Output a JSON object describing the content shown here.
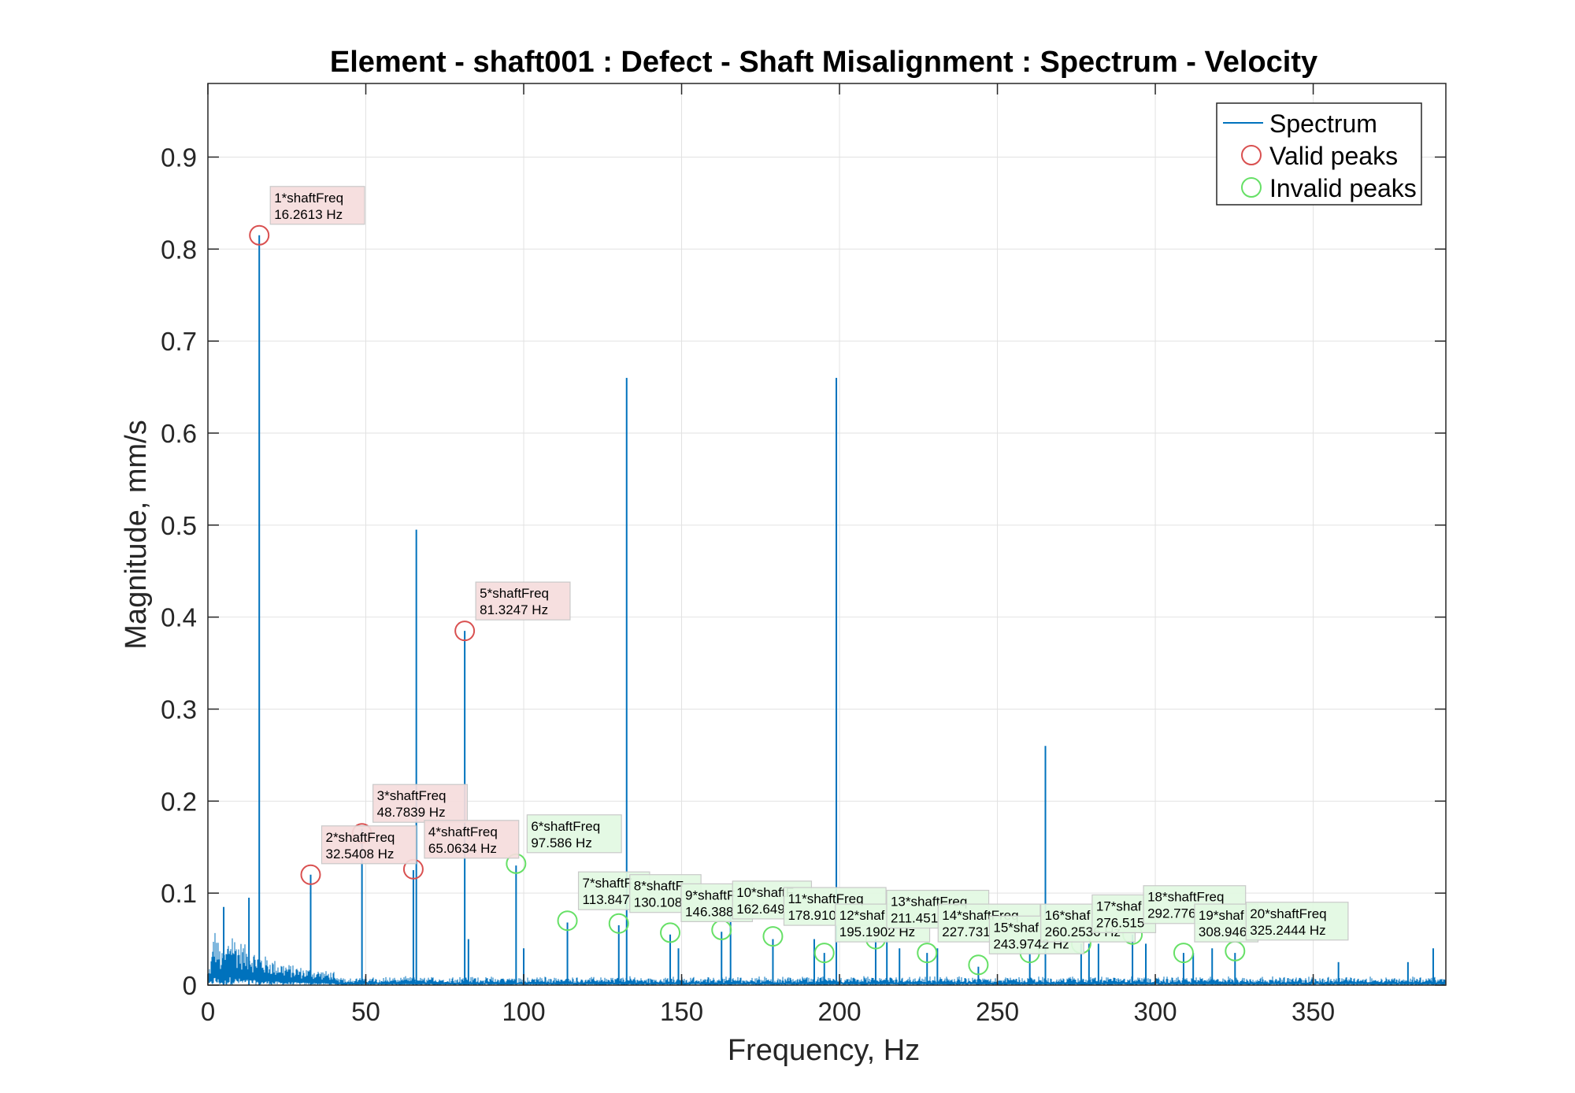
{
  "chart_data": {
    "type": "line",
    "title": "Element - shaft001 : Defect - Shaft Misalignment : Spectrum - Velocity",
    "xlabel": "Frequency, Hz",
    "ylabel": "Magnitude, mm/s",
    "xlim": [
      0,
      392
    ],
    "ylim": [
      0,
      0.98
    ],
    "xticks": [
      "0",
      "50",
      "100",
      "150",
      "200",
      "250",
      "300",
      "350"
    ],
    "yticks": [
      "0",
      "0.1",
      "0.2",
      "0.3",
      "0.4",
      "0.5",
      "0.6",
      "0.7",
      "0.8",
      "0.9"
    ],
    "grid": true,
    "legend": {
      "location": "top-right",
      "entries": [
        "Spectrum",
        "Valid peaks",
        "Invalid peaks"
      ]
    },
    "colors": {
      "spectrum": "#0072BD",
      "valid": "#D95050",
      "invalid": "#66E066",
      "valid_box": "#F5DCDC",
      "invalid_box": "#E2F8E2"
    },
    "series": [
      {
        "name": "Spectrum",
        "spikes": [
          {
            "x": 5.0,
            "y": 0.085
          },
          {
            "x": 13.0,
            "y": 0.095
          },
          {
            "x": 16.2613,
            "y": 0.815
          },
          {
            "x": 32.5408,
            "y": 0.12
          },
          {
            "x": 48.7839,
            "y": 0.17
          },
          {
            "x": 65.0634,
            "y": 0.125
          },
          {
            "x": 66.0,
            "y": 0.495
          },
          {
            "x": 81.3247,
            "y": 0.385
          },
          {
            "x": 82.5,
            "y": 0.05
          },
          {
            "x": 97.586,
            "y": 0.13
          },
          {
            "x": 100.0,
            "y": 0.04
          },
          {
            "x": 113.847,
            "y": 0.068
          },
          {
            "x": 130.108,
            "y": 0.065
          },
          {
            "x": 132.6,
            "y": 0.66
          },
          {
            "x": 146.388,
            "y": 0.055
          },
          {
            "x": 149.0,
            "y": 0.04
          },
          {
            "x": 162.649,
            "y": 0.058
          },
          {
            "x": 165.5,
            "y": 0.085
          },
          {
            "x": 178.91,
            "y": 0.05
          },
          {
            "x": 192.0,
            "y": 0.05
          },
          {
            "x": 195.1902,
            "y": 0.035
          },
          {
            "x": 199.0,
            "y": 0.66
          },
          {
            "x": 211.451,
            "y": 0.05
          },
          {
            "x": 215.0,
            "y": 0.05
          },
          {
            "x": 219.0,
            "y": 0.04
          },
          {
            "x": 227.731,
            "y": 0.035
          },
          {
            "x": 231.0,
            "y": 0.04
          },
          {
            "x": 243.9742,
            "y": 0.02
          },
          {
            "x": 260.2536,
            "y": 0.035
          },
          {
            "x": 265.2,
            "y": 0.26
          },
          {
            "x": 276.515,
            "y": 0.045
          },
          {
            "x": 279.0,
            "y": 0.045
          },
          {
            "x": 282.0,
            "y": 0.045
          },
          {
            "x": 292.776,
            "y": 0.055
          },
          {
            "x": 297.0,
            "y": 0.045
          },
          {
            "x": 308.946,
            "y": 0.035
          },
          {
            "x": 312.0,
            "y": 0.035
          },
          {
            "x": 318.0,
            "y": 0.04
          },
          {
            "x": 325.2444,
            "y": 0.035
          },
          {
            "x": 358.0,
            "y": 0.025
          },
          {
            "x": 380.0,
            "y": 0.025
          },
          {
            "x": 388.0,
            "y": 0.04
          }
        ]
      }
    ],
    "valid_peaks": [
      {
        "label": "1*shaftFreq",
        "freq": "16.2613 Hz",
        "x": 16.2613,
        "y": 0.815
      },
      {
        "label": "2*shaftFreq",
        "freq": "32.5408 Hz",
        "x": 32.5408,
        "y": 0.12
      },
      {
        "label": "3*shaftFreq",
        "freq": "48.7839 Hz",
        "x": 48.7839,
        "y": 0.165
      },
      {
        "label": "4*shaftFreq",
        "freq": "65.0634 Hz",
        "x": 65.0634,
        "y": 0.126
      },
      {
        "label": "5*shaftFreq",
        "freq": "81.3247 Hz",
        "x": 81.3247,
        "y": 0.385
      }
    ],
    "invalid_peaks": [
      {
        "label": "6*shaftFreq",
        "freq": "97.586 Hz",
        "x": 97.586,
        "y": 0.132
      },
      {
        "label": "7*shaftF",
        "freq": "113.847",
        "x": 113.847,
        "y": 0.07
      },
      {
        "label": "8*shaftF",
        "freq": "130.108",
        "x": 130.108,
        "y": 0.067
      },
      {
        "label": "9*shaftF",
        "freq": "146.388",
        "x": 146.388,
        "y": 0.057
      },
      {
        "label": "10*shaftF",
        "freq": "162.649",
        "x": 162.649,
        "y": 0.06
      },
      {
        "label": "11*shaftFreq",
        "freq": "178.910",
        "x": 178.91,
        "y": 0.053
      },
      {
        "label": "12*shaf",
        "freq": "195.1902 Hz",
        "x": 195.1902,
        "y": 0.035
      },
      {
        "label": "13*shaftFreq",
        "freq": "211.451",
        "x": 211.451,
        "y": 0.05
      },
      {
        "label": "14*shaftFreq",
        "freq": "227.731",
        "x": 227.731,
        "y": 0.035
      },
      {
        "label": "15*shaf",
        "freq": "243.9742 Hz",
        "x": 243.9742,
        "y": 0.022
      },
      {
        "label": "16*shaf",
        "freq": "260.2536 Hz",
        "x": 260.2536,
        "y": 0.035
      },
      {
        "label": "17*shaf",
        "freq": "276.515",
        "x": 276.515,
        "y": 0.045
      },
      {
        "label": "18*shaftFreq",
        "freq": "292.776",
        "x": 292.776,
        "y": 0.055
      },
      {
        "label": "19*shaf",
        "freq": "308.946",
        "x": 308.946,
        "y": 0.035
      },
      {
        "label": "20*shaftFreq",
        "freq": "325.2444 Hz",
        "x": 325.2444,
        "y": 0.037
      }
    ]
  }
}
